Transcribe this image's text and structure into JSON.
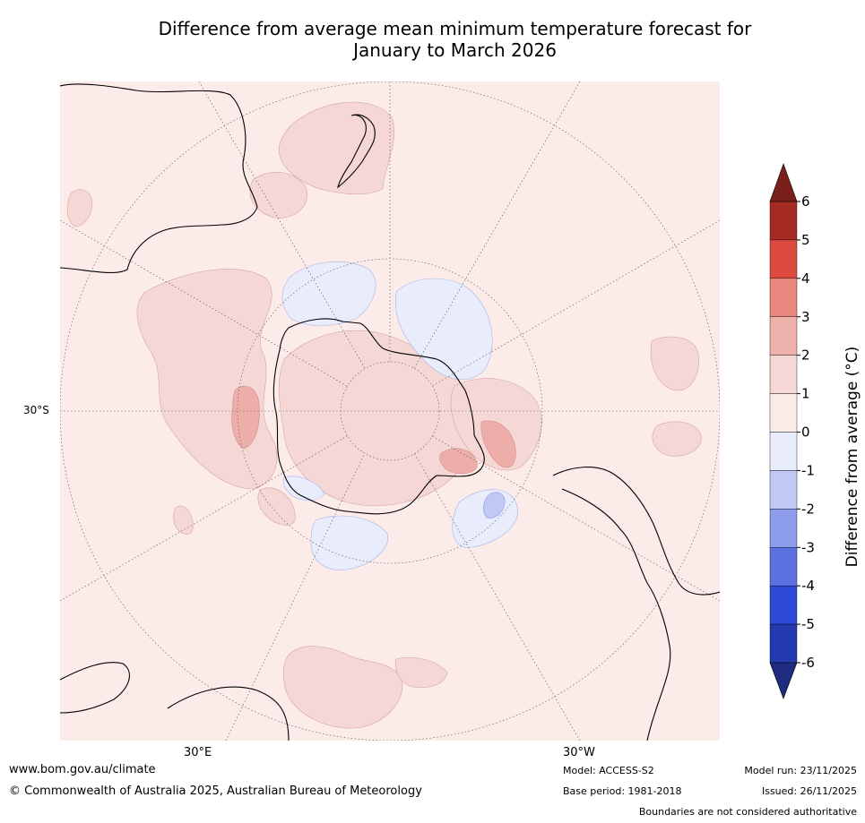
{
  "title_line1": "Difference from average mean minimum temperature forecast for",
  "title_line2": "January to March 2026",
  "map": {
    "lat_label": "30°S",
    "lon_labels": [
      "30°E",
      "30°W"
    ],
    "colors": {
      "ocean_light": "#fbecea",
      "warm1": "#f5d7d6",
      "warm2": "#edaeaa",
      "warm3": "#e88a82",
      "cool1": "#e8ecfb",
      "cool2": "#c1c8f2",
      "land_line": "#000000"
    }
  },
  "colorbar": {
    "label": "Difference from average (°C)",
    "ticks": [
      "6",
      "5",
      "4",
      "3",
      "2",
      "1",
      "0",
      "-1",
      "-2",
      "-3",
      "-4",
      "-5",
      "-6"
    ],
    "colors": [
      "#a52a24",
      "#dc4a3f",
      "#e8877e",
      "#edb0aa",
      "#f5d7d6",
      "#fbecea",
      "#e8ecfb",
      "#c1c8f2",
      "#8d9ceb",
      "#5b70e3",
      "#2d4ad7",
      "#233ab0"
    ],
    "top_arrow_color": "#7a201b",
    "bottom_arrow_color": "#1e2b7e"
  },
  "footer": {
    "website": "www.bom.gov.au/climate",
    "copyright": "© Commonwealth of Australia 2025, Australian Bureau of Meteorology",
    "model": "Model: ACCESS-S2",
    "base_period": "Base period: 1981-2018",
    "model_run": "Model run: 23/11/2025",
    "issued": "Issued: 26/11/2025",
    "disclaimer": "Boundaries are not considered authoritative"
  }
}
